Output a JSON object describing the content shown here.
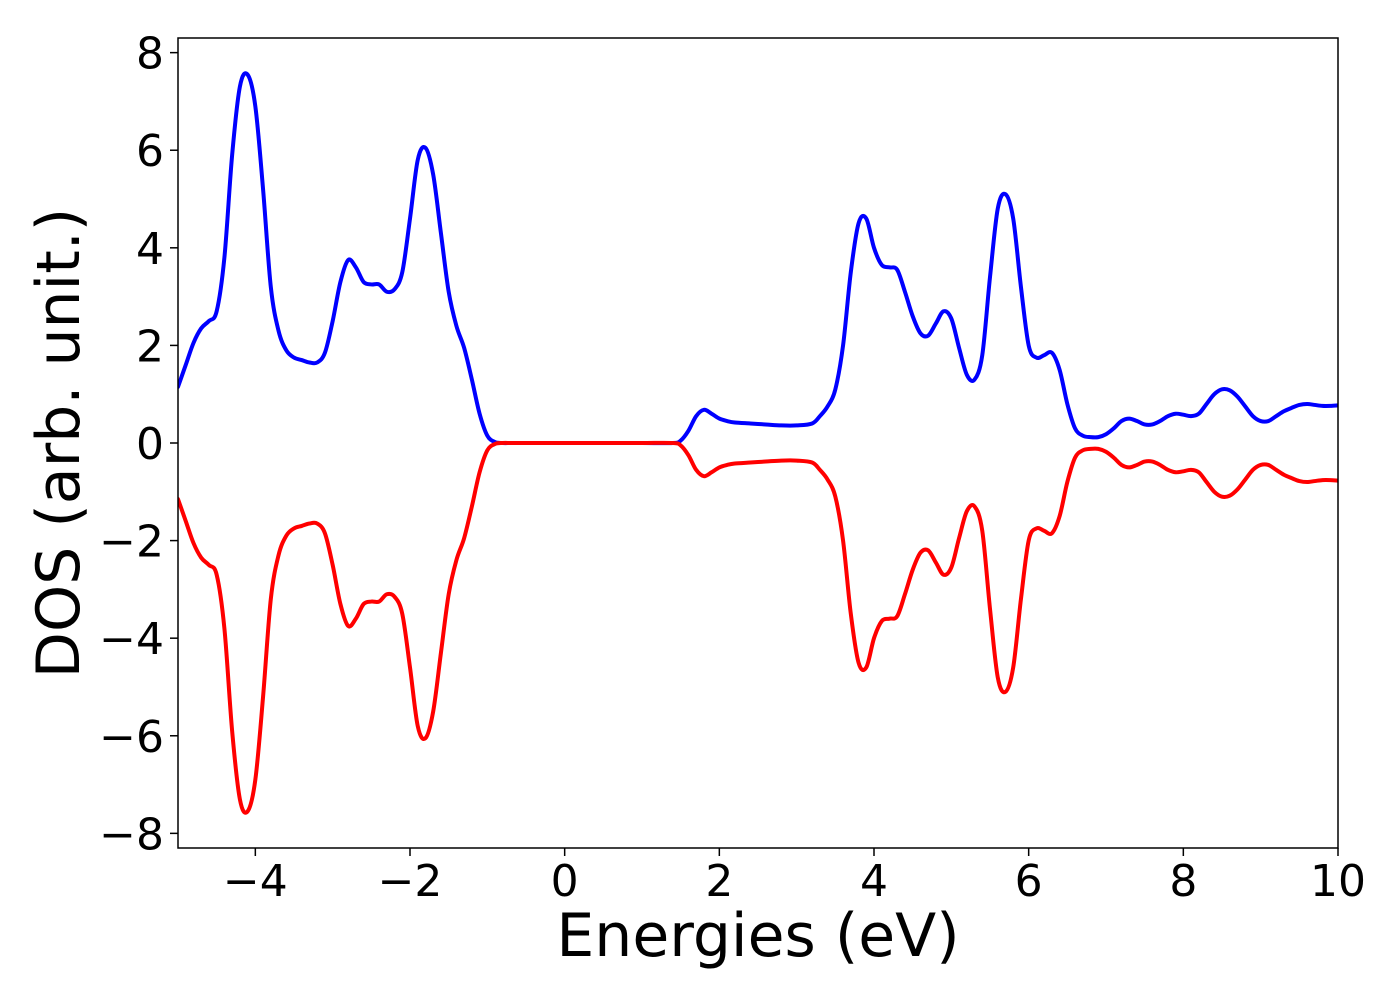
{
  "chart_data": {
    "type": "line",
    "title": "",
    "xlabel": "Energies (eV)",
    "ylabel": "DOS (arb. unit.)",
    "xlim": [
      -5,
      10
    ],
    "ylim": [
      -8.3,
      8.3
    ],
    "xticks": [
      -4,
      -2,
      0,
      2,
      4,
      6,
      8,
      10
    ],
    "xtick_labels": [
      "−4",
      "−2",
      "0",
      "2",
      "4",
      "6",
      "8",
      "10"
    ],
    "yticks": [
      8,
      6,
      4,
      2,
      0,
      -2,
      -4,
      -6,
      -8
    ],
    "ytick_labels": [
      "8",
      "6",
      "4",
      "2",
      "0",
      "−2",
      "−4",
      "−6",
      "−8"
    ],
    "grid": false,
    "legend": "none",
    "series": [
      {
        "color": "#0000ff",
        "x": [
          -5.0,
          -4.9,
          -4.8,
          -4.7,
          -4.6,
          -4.5,
          -4.4,
          -4.3,
          -4.2,
          -4.1,
          -4.0,
          -3.9,
          -3.8,
          -3.7,
          -3.6,
          -3.5,
          -3.4,
          -3.3,
          -3.2,
          -3.1,
          -3.0,
          -2.9,
          -2.8,
          -2.7,
          -2.6,
          -2.5,
          -2.4,
          -2.3,
          -2.2,
          -2.1,
          -2.0,
          -1.9,
          -1.8,
          -1.7,
          -1.6,
          -1.5,
          -1.4,
          -1.3,
          -1.2,
          -1.1,
          -1.0,
          -0.9,
          -0.8,
          -0.7,
          -0.6,
          -0.5,
          0.0,
          0.5,
          1.0,
          1.4,
          1.5,
          1.6,
          1.7,
          1.8,
          1.9,
          2.0,
          2.1,
          2.2,
          2.4,
          2.6,
          2.8,
          3.0,
          3.2,
          3.3,
          3.4,
          3.5,
          3.6,
          3.7,
          3.8,
          3.9,
          4.0,
          4.1,
          4.2,
          4.3,
          4.4,
          4.5,
          4.6,
          4.7,
          4.8,
          4.9,
          5.0,
          5.1,
          5.2,
          5.3,
          5.4,
          5.5,
          5.6,
          5.7,
          5.8,
          5.9,
          6.0,
          6.1,
          6.2,
          6.3,
          6.4,
          6.5,
          6.6,
          6.7,
          6.8,
          6.9,
          7.0,
          7.1,
          7.2,
          7.3,
          7.4,
          7.5,
          7.6,
          7.7,
          7.8,
          7.9,
          8.0,
          8.1,
          8.2,
          8.3,
          8.4,
          8.5,
          8.6,
          8.7,
          8.8,
          8.9,
          9.0,
          9.1,
          9.2,
          9.3,
          9.4,
          9.5,
          9.6,
          9.7,
          9.8,
          9.9,
          10.0
        ],
        "y": [
          1.15,
          1.6,
          2.05,
          2.35,
          2.5,
          2.7,
          3.8,
          5.9,
          7.3,
          7.55,
          6.9,
          5.2,
          3.2,
          2.3,
          1.9,
          1.75,
          1.7,
          1.65,
          1.65,
          1.85,
          2.5,
          3.3,
          3.75,
          3.6,
          3.3,
          3.25,
          3.25,
          3.1,
          3.15,
          3.5,
          4.6,
          5.8,
          6.05,
          5.5,
          4.3,
          3.1,
          2.4,
          1.95,
          1.3,
          0.6,
          0.15,
          0.02,
          0.0,
          0.0,
          0.0,
          0.0,
          0.0,
          0.0,
          0.0,
          0.0,
          0.05,
          0.25,
          0.55,
          0.68,
          0.6,
          0.5,
          0.45,
          0.42,
          0.4,
          0.38,
          0.36,
          0.36,
          0.4,
          0.55,
          0.75,
          1.1,
          2.0,
          3.5,
          4.5,
          4.6,
          4.0,
          3.65,
          3.6,
          3.55,
          3.1,
          2.6,
          2.25,
          2.2,
          2.45,
          2.7,
          2.55,
          1.95,
          1.4,
          1.3,
          1.8,
          3.4,
          4.8,
          5.1,
          4.6,
          3.2,
          2.0,
          1.75,
          1.8,
          1.85,
          1.5,
          0.8,
          0.3,
          0.15,
          0.12,
          0.12,
          0.18,
          0.3,
          0.45,
          0.5,
          0.45,
          0.38,
          0.38,
          0.45,
          0.55,
          0.6,
          0.58,
          0.55,
          0.6,
          0.8,
          1.0,
          1.1,
          1.08,
          0.95,
          0.75,
          0.55,
          0.45,
          0.45,
          0.55,
          0.65,
          0.72,
          0.78,
          0.8,
          0.78,
          0.76,
          0.76,
          0.77
        ]
      },
      {
        "color": "#ff0000",
        "x": [
          -5.0,
          -4.9,
          -4.8,
          -4.7,
          -4.6,
          -4.5,
          -4.4,
          -4.3,
          -4.2,
          -4.1,
          -4.0,
          -3.9,
          -3.8,
          -3.7,
          -3.6,
          -3.5,
          -3.4,
          -3.3,
          -3.2,
          -3.1,
          -3.0,
          -2.9,
          -2.8,
          -2.7,
          -2.6,
          -2.5,
          -2.4,
          -2.3,
          -2.2,
          -2.1,
          -2.0,
          -1.9,
          -1.8,
          -1.7,
          -1.6,
          -1.5,
          -1.4,
          -1.3,
          -1.2,
          -1.1,
          -1.0,
          -0.9,
          -0.8,
          -0.7,
          -0.6,
          -0.5,
          0.0,
          0.5,
          1.0,
          1.4,
          1.5,
          1.6,
          1.7,
          1.8,
          1.9,
          2.0,
          2.1,
          2.2,
          2.4,
          2.6,
          2.8,
          3.0,
          3.2,
          3.3,
          3.4,
          3.5,
          3.6,
          3.7,
          3.8,
          3.9,
          4.0,
          4.1,
          4.2,
          4.3,
          4.4,
          4.5,
          4.6,
          4.7,
          4.8,
          4.9,
          5.0,
          5.1,
          5.2,
          5.3,
          5.4,
          5.5,
          5.6,
          5.7,
          5.8,
          5.9,
          6.0,
          6.1,
          6.2,
          6.3,
          6.4,
          6.5,
          6.6,
          6.7,
          6.8,
          6.9,
          7.0,
          7.1,
          7.2,
          7.3,
          7.4,
          7.5,
          7.6,
          7.7,
          7.8,
          7.9,
          8.0,
          8.1,
          8.2,
          8.3,
          8.4,
          8.5,
          8.6,
          8.7,
          8.8,
          8.9,
          9.0,
          9.1,
          9.2,
          9.3,
          9.4,
          9.5,
          9.6,
          9.7,
          9.8,
          9.9,
          10.0
        ],
        "y": [
          -1.15,
          -1.6,
          -2.05,
          -2.35,
          -2.5,
          -2.7,
          -3.8,
          -5.9,
          -7.3,
          -7.55,
          -6.9,
          -5.2,
          -3.2,
          -2.3,
          -1.9,
          -1.75,
          -1.7,
          -1.65,
          -1.65,
          -1.85,
          -2.5,
          -3.3,
          -3.75,
          -3.6,
          -3.3,
          -3.25,
          -3.25,
          -3.1,
          -3.15,
          -3.5,
          -4.6,
          -5.8,
          -6.05,
          -5.5,
          -4.3,
          -3.1,
          -2.4,
          -1.95,
          -1.3,
          -0.6,
          -0.15,
          -0.02,
          0.0,
          0.0,
          0.0,
          0.0,
          0.0,
          0.0,
          0.0,
          0.0,
          -0.05,
          -0.25,
          -0.55,
          -0.68,
          -0.6,
          -0.5,
          -0.45,
          -0.42,
          -0.4,
          -0.38,
          -0.36,
          -0.36,
          -0.4,
          -0.55,
          -0.75,
          -1.1,
          -2.0,
          -3.5,
          -4.5,
          -4.6,
          -4.0,
          -3.65,
          -3.6,
          -3.55,
          -3.1,
          -2.6,
          -2.25,
          -2.2,
          -2.45,
          -2.7,
          -2.55,
          -1.95,
          -1.4,
          -1.3,
          -1.8,
          -3.4,
          -4.8,
          -5.1,
          -4.6,
          -3.2,
          -2.0,
          -1.75,
          -1.8,
          -1.85,
          -1.5,
          -0.8,
          -0.3,
          -0.15,
          -0.12,
          -0.12,
          -0.18,
          -0.3,
          -0.45,
          -0.5,
          -0.45,
          -0.38,
          -0.38,
          -0.45,
          -0.55,
          -0.6,
          -0.58,
          -0.55,
          -0.6,
          -0.8,
          -1.0,
          -1.1,
          -1.08,
          -0.95,
          -0.75,
          -0.55,
          -0.45,
          -0.45,
          -0.55,
          -0.65,
          -0.72,
          -0.78,
          -0.8,
          -0.78,
          -0.76,
          -0.76,
          -0.77
        ]
      }
    ]
  }
}
